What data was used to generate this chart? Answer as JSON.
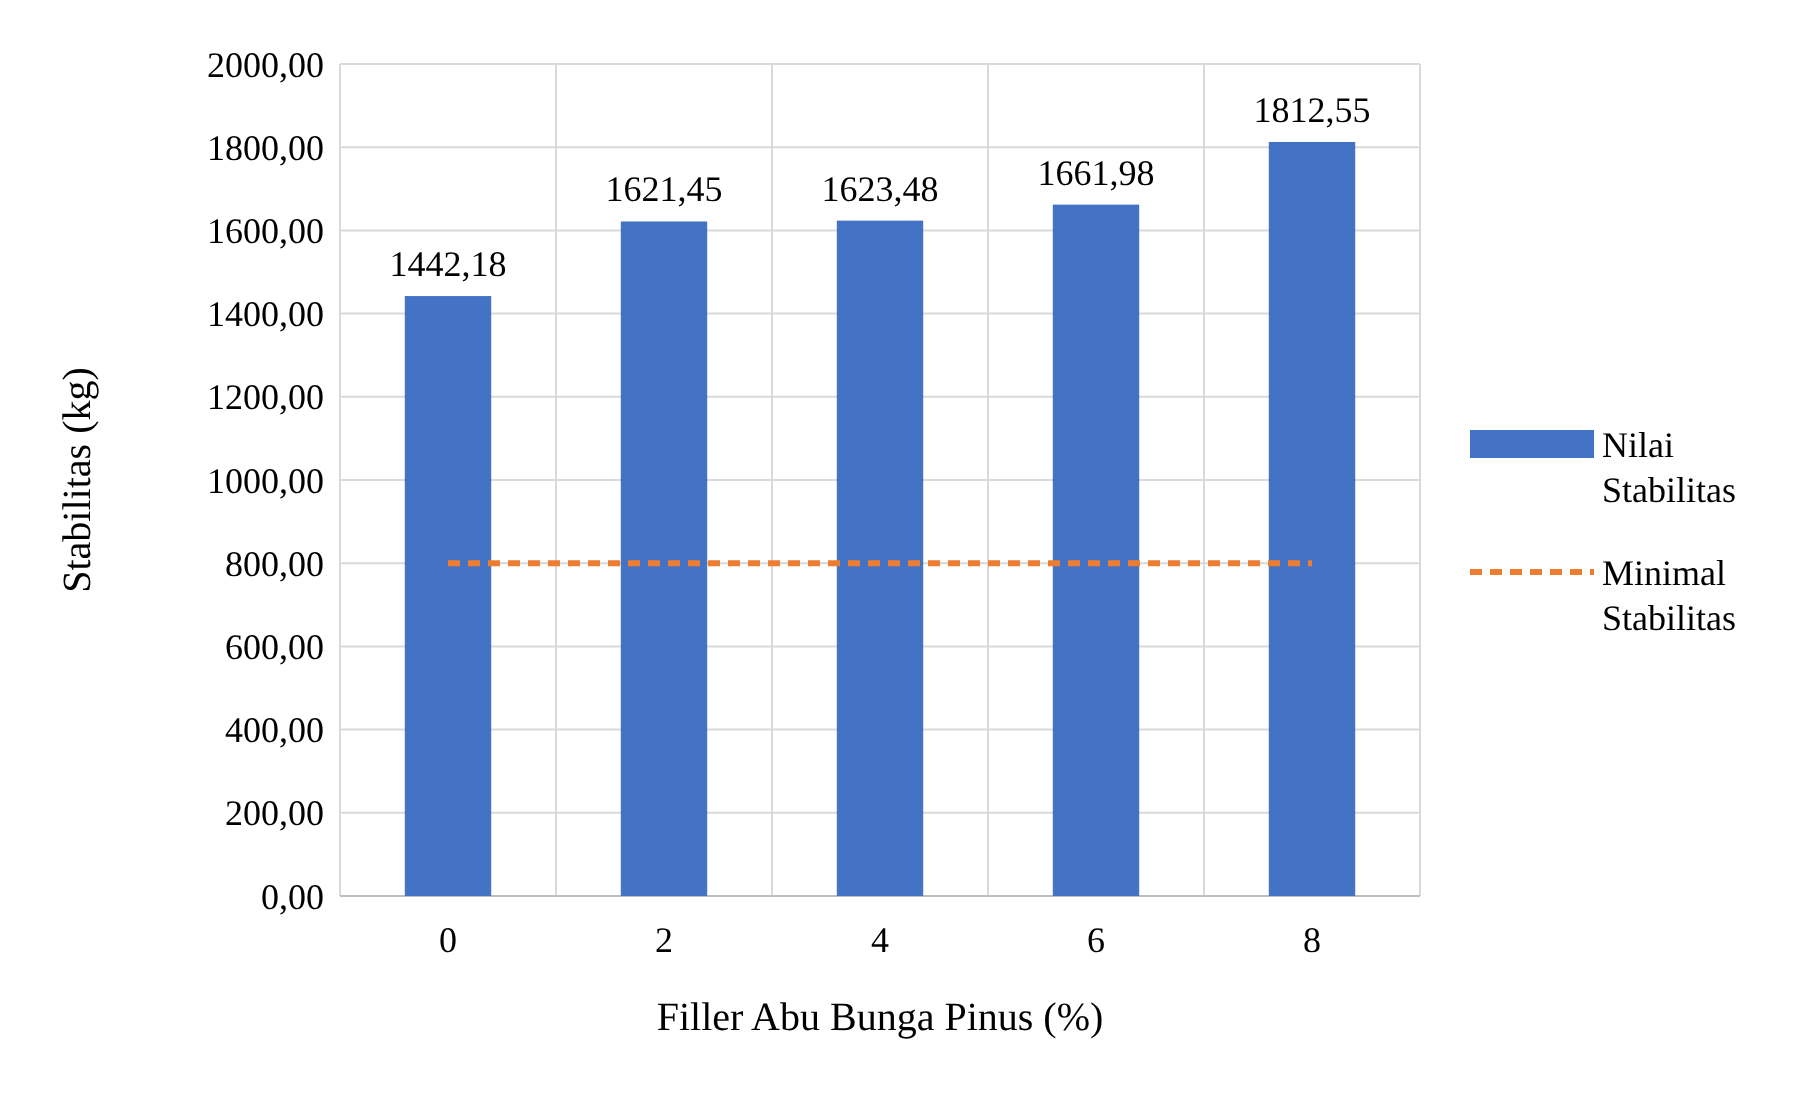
{
  "chart_data": {
    "type": "bar",
    "xlabel": "Filler Abu Bunga Pinus (%)",
    "ylabel": "Stabilitas (kg)",
    "categories": [
      "0",
      "2",
      "4",
      "6",
      "8"
    ],
    "series": [
      {
        "name": "Nilai Stabilitas",
        "color": "#4472c4",
        "values": [
          1442.18,
          1621.45,
          1623.48,
          1661.98,
          1812.55
        ],
        "value_labels": [
          "1442,18",
          "1621,45",
          "1623,48",
          "1661,98",
          "1812,55"
        ]
      },
      {
        "name": "Minimal Stabilitas",
        "type": "line",
        "color": "#ed7d31",
        "values": [
          800,
          800,
          800,
          800,
          800
        ],
        "line_style": "dashed",
        "marker": "none"
      }
    ],
    "ylim": [
      0,
      2000
    ],
    "yticks": [
      {
        "value": 0,
        "label": "0,00"
      },
      {
        "value": 200,
        "label": "200,00"
      },
      {
        "value": 400,
        "label": "400,00"
      },
      {
        "value": 600,
        "label": "600,00"
      },
      {
        "value": 800,
        "label": "800,00"
      },
      {
        "value": 1000,
        "label": "1000,00"
      },
      {
        "value": 1200,
        "label": "1200,00"
      },
      {
        "value": 1400,
        "label": "1400,00"
      },
      {
        "value": 1600,
        "label": "1600,00"
      },
      {
        "value": 1800,
        "label": "1800,00"
      },
      {
        "value": 2000,
        "label": "2000,00"
      }
    ],
    "grid": true,
    "legend": "right"
  }
}
